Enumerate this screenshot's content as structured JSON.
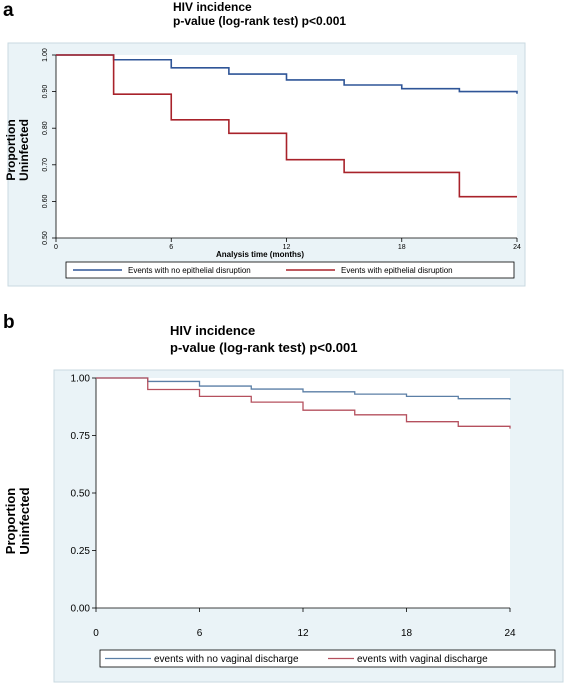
{
  "colors": {
    "blue": "#2f5597",
    "red": "#a8222a",
    "plot_bg": "#e8f1f5",
    "panel_bg": "#eaf3f7"
  },
  "panel_a": {
    "label": "a",
    "title": "HIV incidence",
    "subtitle": "p-value (log-rank test) p<0.001"
  },
  "panel_b": {
    "label": "b",
    "title": "HIV incidence",
    "subtitle": "p-value (log-rank test) p<0.001"
  },
  "chart_data": [
    {
      "type": "line",
      "title": "HIV incidence",
      "subtitle": "p-value (log-rank test) p<0.001",
      "xlabel": "Analysis time (months)",
      "ylabel": "Proportion Uninfected",
      "xlim": [
        0,
        24
      ],
      "ylim": [
        0.5,
        1.0
      ],
      "xticks": [
        "0",
        "6",
        "12",
        "18",
        "24"
      ],
      "xtick_values": [
        0,
        6,
        12,
        18,
        24
      ],
      "yticks": [
        "0.50",
        "0.60",
        "0.70",
        "0.80",
        "0.90",
        "1.00"
      ],
      "ytick_values": [
        0.5,
        0.6,
        0.7,
        0.8,
        0.9,
        1.0
      ],
      "legend_position": "bottom",
      "series": [
        {
          "name": "Events with no  epithelial disruption",
          "color": "#2f5597",
          "step": [
            [
              0,
              1.0
            ],
            [
              3,
              0.987
            ],
            [
              6,
              0.965
            ],
            [
              9,
              0.948
            ],
            [
              12,
              0.932
            ],
            [
              15,
              0.918
            ],
            [
              18,
              0.908
            ],
            [
              21,
              0.9
            ],
            [
              24,
              0.894
            ]
          ]
        },
        {
          "name": "Events with epithelial disruption",
          "color": "#a8222a",
          "step": [
            [
              0,
              1.0
            ],
            [
              3,
              0.893
            ],
            [
              6,
              0.823
            ],
            [
              9,
              0.786
            ],
            [
              12,
              0.714
            ],
            [
              15,
              0.679
            ],
            [
              21,
              0.613
            ],
            [
              24,
              0.613
            ]
          ]
        }
      ]
    },
    {
      "type": "line",
      "title": "HIV incidence",
      "subtitle": "p-value (log-rank test) p<0.001",
      "xlabel": "",
      "ylabel": "Proportion Uninfected",
      "xlim": [
        0,
        24
      ],
      "ylim": [
        0.0,
        1.0
      ],
      "xticks": [
        "0",
        "6",
        "12",
        "18",
        "24"
      ],
      "xtick_values": [
        0,
        6,
        12,
        18,
        24
      ],
      "yticks": [
        "0.00",
        "0.25",
        "0.50",
        "0.75",
        "1.00"
      ],
      "ytick_values": [
        0.0,
        0.25,
        0.5,
        0.75,
        1.0
      ],
      "legend_position": "bottom",
      "series": [
        {
          "name": "events with no vaginal discharge",
          "color": "#5b7fa6",
          "step": [
            [
              0,
              1.0
            ],
            [
              3,
              0.985
            ],
            [
              6,
              0.965
            ],
            [
              9,
              0.952
            ],
            [
              12,
              0.94
            ],
            [
              15,
              0.93
            ],
            [
              18,
              0.92
            ],
            [
              21,
              0.91
            ],
            [
              24,
              0.905
            ]
          ]
        },
        {
          "name": "events with vaginal discharge",
          "color": "#b5505e",
          "step": [
            [
              0,
              1.0
            ],
            [
              3,
              0.95
            ],
            [
              6,
              0.92
            ],
            [
              9,
              0.895
            ],
            [
              12,
              0.86
            ],
            [
              15,
              0.84
            ],
            [
              18,
              0.81
            ],
            [
              21,
              0.79
            ],
            [
              24,
              0.78
            ]
          ]
        }
      ]
    }
  ]
}
